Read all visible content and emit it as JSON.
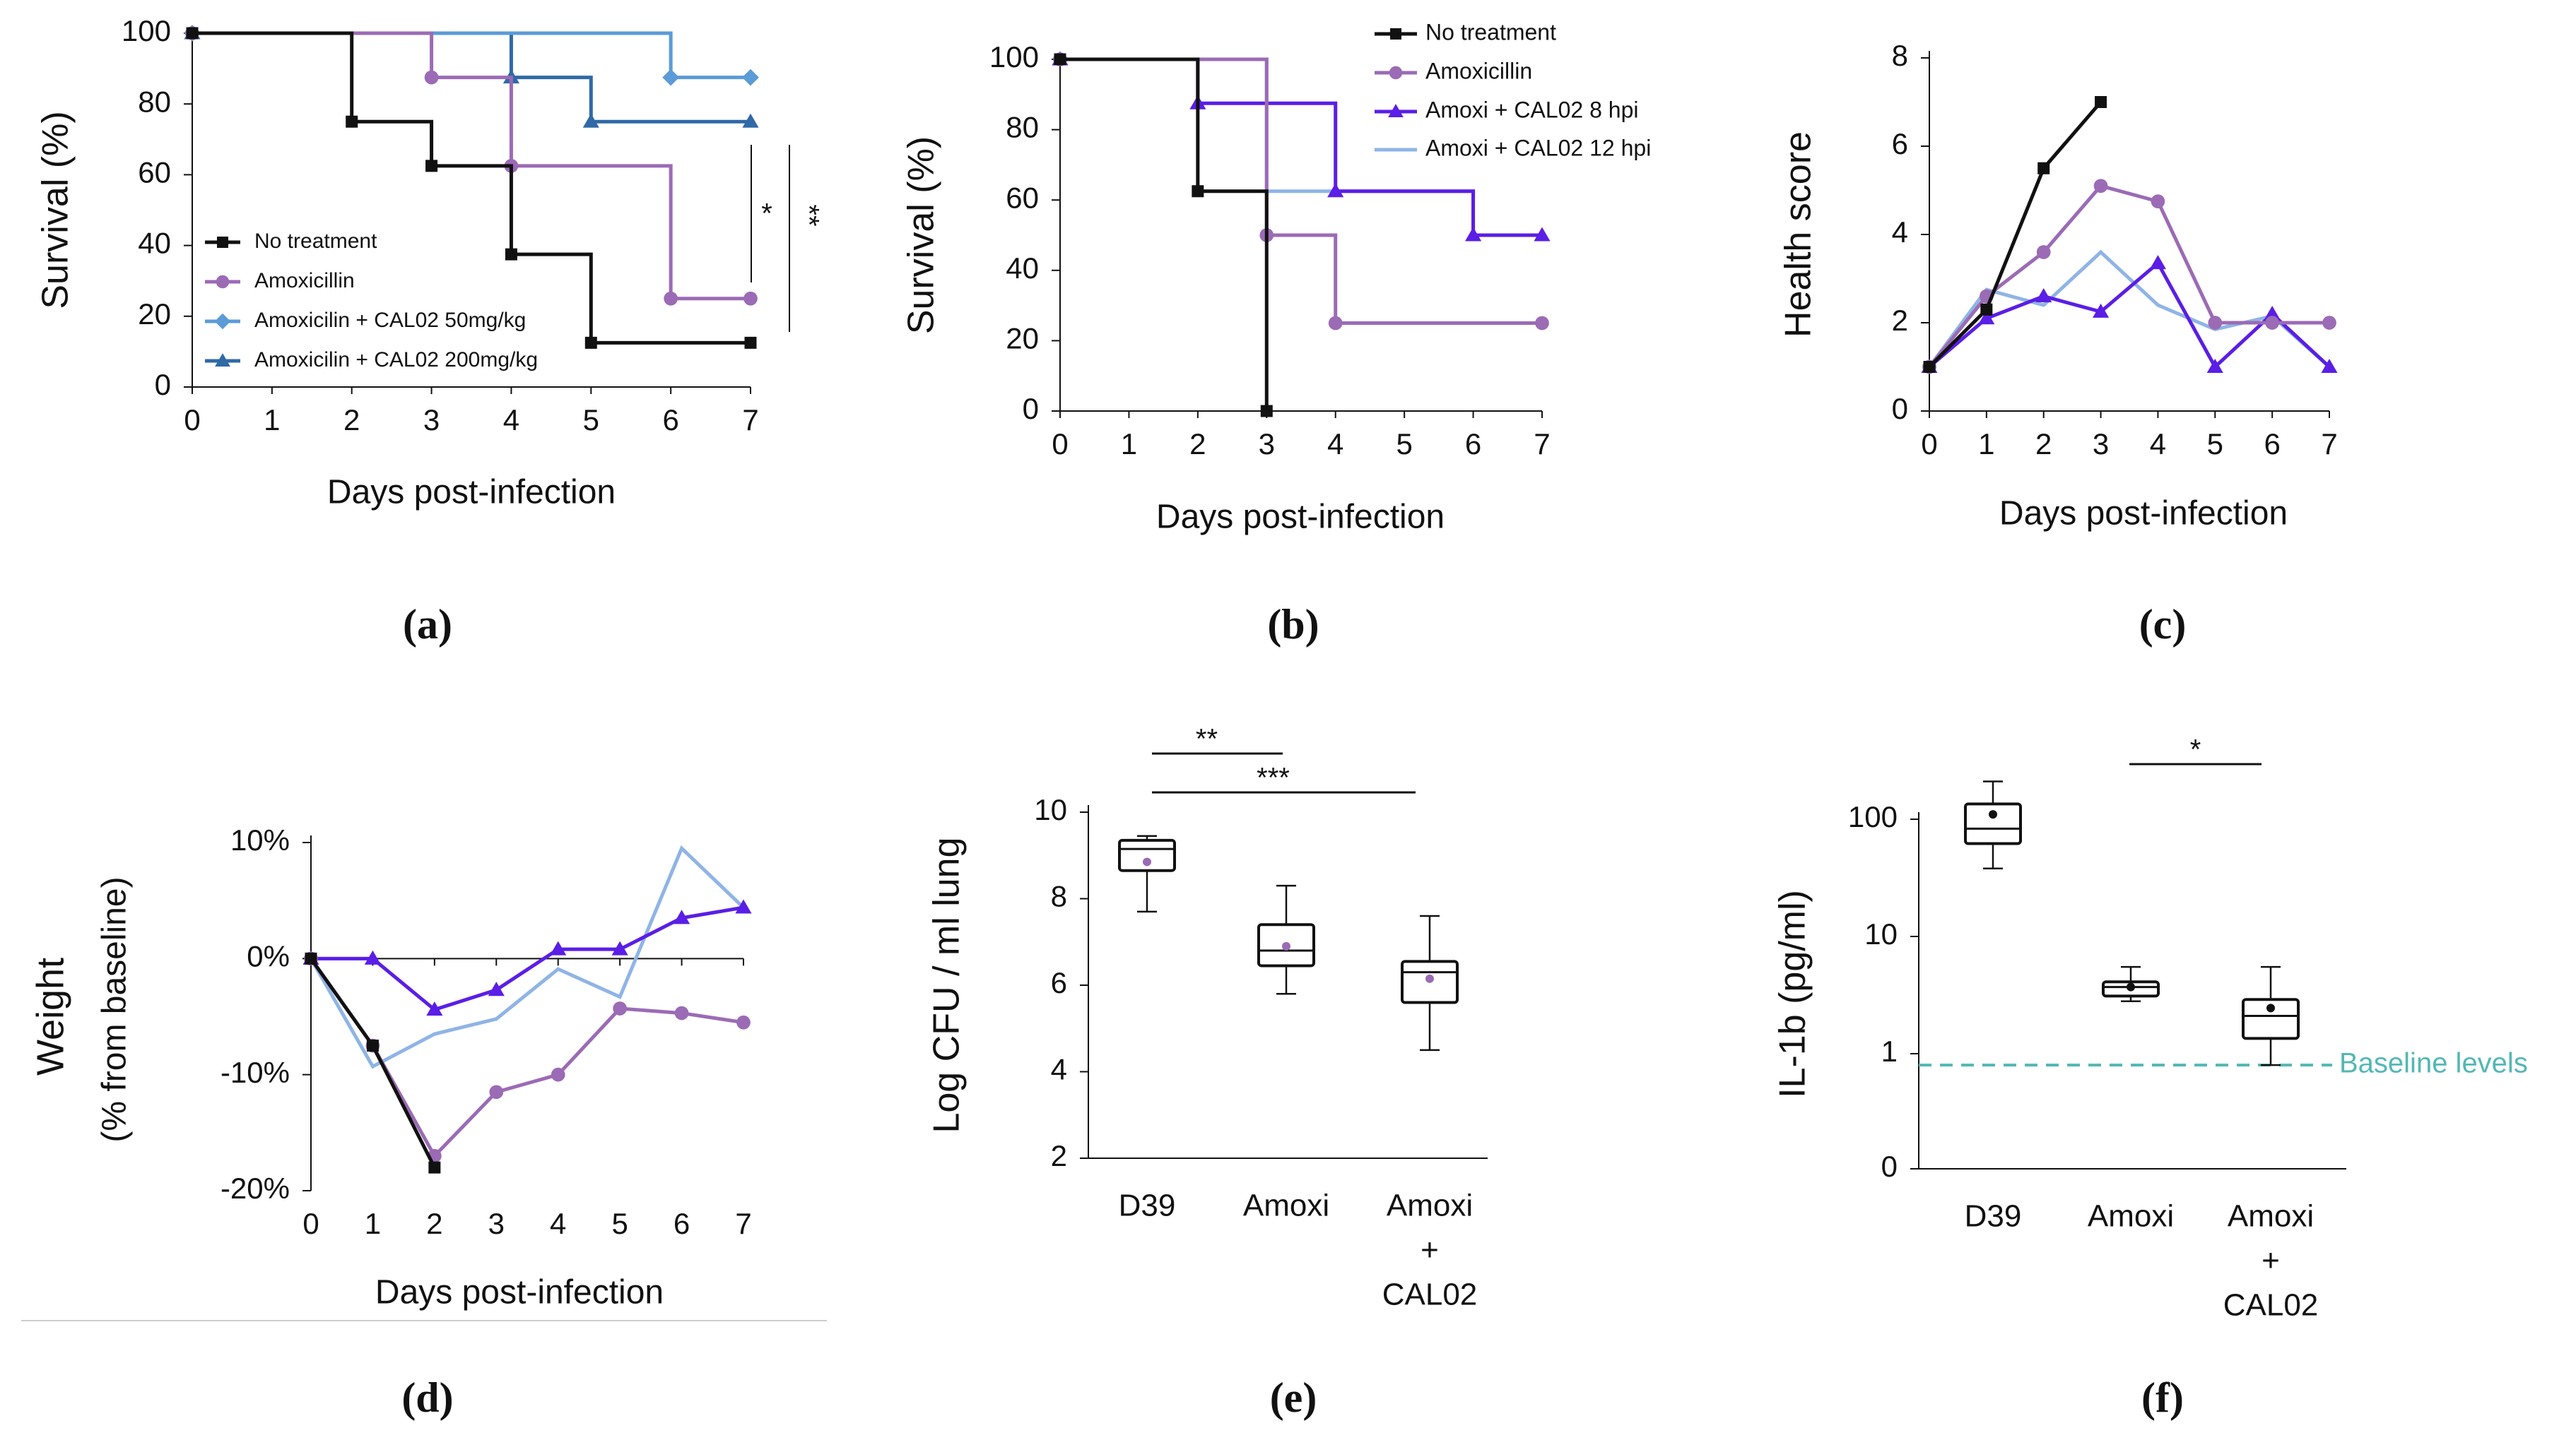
{
  "colors": {
    "black": "#111111",
    "purple": "#9b6bb5",
    "lightblue": "#8fb4e6",
    "midblue": "#5b9bd8",
    "darkblue": "#2f6aa6",
    "violet": "#5a1ee6",
    "teal": "#52b8b3"
  },
  "chart_data": [
    {
      "id": "a",
      "type": "line",
      "step": true,
      "caption": "(a)",
      "xlabel": "Days post-infection",
      "ylabel": "Survival (%)",
      "xlim": [
        0,
        7
      ],
      "ylim": [
        0,
        100
      ],
      "xticks": [
        "0",
        "1",
        "2",
        "3",
        "4",
        "5",
        "6",
        "7"
      ],
      "yticks": [
        "0",
        "20",
        "40",
        "60",
        "80",
        "100"
      ],
      "legend": "lower-left",
      "series": [
        {
          "name": "No treatment",
          "color": "black",
          "marker": "square",
          "x": [
            0,
            2,
            3,
            4,
            5,
            7
          ],
          "y": [
            100,
            75,
            62.5,
            37.5,
            12.5,
            12.5
          ]
        },
        {
          "name": "Amoxicillin",
          "color": "purple",
          "marker": "circle",
          "x": [
            0,
            3,
            4,
            6,
            7
          ],
          "y": [
            100,
            87.5,
            62.5,
            25,
            25
          ]
        },
        {
          "name": "Amoxicilin + CAL02  50mg/kg",
          "color": "midblue",
          "marker": "diamond",
          "x": [
            0,
            6,
            7
          ],
          "y": [
            100,
            87.5,
            87.5
          ]
        },
        {
          "name": "Amoxicilin + CAL02  200mg/kg",
          "color": "darkblue",
          "marker": "triangle",
          "x": [
            0,
            4,
            5,
            7
          ],
          "y": [
            100,
            87.5,
            75,
            75
          ]
        }
      ],
      "annotations": [
        {
          "text": "*"
        },
        {
          "text": "**"
        }
      ]
    },
    {
      "id": "b",
      "type": "line",
      "step": true,
      "caption": "(b)",
      "xlabel": "Days post-infection",
      "ylabel": "Survival (%)",
      "xlim": [
        0,
        7
      ],
      "ylim": [
        0,
        100
      ],
      "xticks": [
        "0",
        "1",
        "2",
        "3",
        "4",
        "5",
        "6",
        "7"
      ],
      "yticks": [
        "0",
        "20",
        "40",
        "60",
        "80",
        "100"
      ],
      "legend": "top-right",
      "series": [
        {
          "name": "No treatment",
          "color": "black",
          "marker": "square",
          "x": [
            0,
            2,
            3
          ],
          "y": [
            100,
            62.5,
            0
          ]
        },
        {
          "name": "Amoxicillin",
          "color": "purple",
          "marker": "circle",
          "x": [
            0,
            3,
            4,
            7
          ],
          "y": [
            100,
            50,
            25,
            25
          ]
        },
        {
          "name": "Amoxi + CAL02 8 hpi",
          "color": "violet",
          "marker": "triangle",
          "x": [
            0,
            2,
            4,
            6,
            7
          ],
          "y": [
            100,
            87.5,
            62.5,
            50,
            50
          ]
        },
        {
          "name": "Amoxi + CAL02 12 hpi",
          "color": "lightblue",
          "marker": "none",
          "x": [
            0,
            3,
            6
          ],
          "y": [
            100,
            62.5,
            50
          ]
        }
      ]
    },
    {
      "id": "c",
      "type": "line",
      "caption": "(c)",
      "xlabel": "Days post-infection",
      "ylabel": "Health score",
      "xlim": [
        0,
        7
      ],
      "ylim": [
        0,
        8
      ],
      "xticks": [
        "0",
        "1",
        "2",
        "3",
        "4",
        "5",
        "6",
        "7"
      ],
      "yticks": [
        "0",
        "2",
        "4",
        "6",
        "8"
      ],
      "series": [
        {
          "name": "No treatment",
          "color": "black",
          "marker": "square",
          "x": [
            0,
            1,
            2,
            3
          ],
          "y": [
            1,
            2.3,
            5.5,
            7
          ]
        },
        {
          "name": "Amoxicillin",
          "color": "purple",
          "marker": "circle",
          "x": [
            0,
            1,
            2,
            3,
            4,
            5,
            6,
            7
          ],
          "y": [
            1,
            2.6,
            3.6,
            5.1,
            4.75,
            2,
            2,
            2
          ]
        },
        {
          "name": "Amoxi + CAL02 8 hpi",
          "color": "violet",
          "marker": "triangle",
          "x": [
            0,
            1,
            2,
            3,
            4,
            5,
            6,
            7
          ],
          "y": [
            1,
            2.1,
            2.6,
            2.25,
            3.35,
            1,
            2.2,
            1
          ]
        },
        {
          "name": "Amoxi + CAL02 12 hpi",
          "color": "lightblue",
          "marker": "none",
          "x": [
            0,
            1,
            2,
            3,
            4,
            5,
            6,
            7
          ],
          "y": [
            1,
            2.75,
            2.4,
            3.6,
            2.4,
            1.85,
            2.15,
            1
          ]
        }
      ]
    },
    {
      "id": "d",
      "type": "line",
      "caption": "(d)",
      "xlabel": "Days post-infection",
      "ylabel": "Weight",
      "ylabel2": "(% from baseline)",
      "xlim": [
        0,
        7
      ],
      "ylim": [
        -20,
        10
      ],
      "xticks": [
        "0",
        "1",
        "2",
        "3",
        "4",
        "5",
        "6",
        "7"
      ],
      "yticks": [
        {
          "v": -20,
          "label": "-20%"
        },
        {
          "v": -10,
          "label": "-10%"
        },
        {
          "v": 0,
          "label": "0%"
        },
        {
          "v": 10,
          "label": "10%"
        }
      ],
      "series": [
        {
          "name": "No treatment",
          "color": "black",
          "marker": "square",
          "x": [
            0,
            1,
            2
          ],
          "y": [
            0,
            -7.5,
            -18
          ]
        },
        {
          "name": "Amoxicillin",
          "color": "purple",
          "marker": "circle",
          "x": [
            0,
            1,
            2,
            3,
            4,
            5,
            6,
            7
          ],
          "y": [
            0,
            -7.5,
            -17,
            -11.5,
            -10,
            -4.3,
            -4.7,
            -5.5
          ]
        },
        {
          "name": "Amoxi + CAL02 8 hpi",
          "color": "violet",
          "marker": "triangle",
          "x": [
            0,
            1,
            2,
            3,
            4,
            5,
            6,
            7
          ],
          "y": [
            0,
            0,
            -4.4,
            -2.7,
            0.8,
            0.8,
            3.5,
            4.4
          ]
        },
        {
          "name": "Amoxi + CAL02 12 hpi",
          "color": "lightblue",
          "marker": "none",
          "x": [
            0,
            1,
            2,
            3,
            4,
            5,
            6,
            7
          ],
          "y": [
            0,
            -9.3,
            -6.5,
            -5.2,
            -0.9,
            -3.3,
            9.5,
            4.4
          ]
        }
      ]
    },
    {
      "id": "e",
      "type": "box",
      "caption": "(e)",
      "ylabel": "Log CFU / ml lung",
      "ylim": [
        2,
        10
      ],
      "yticks": [
        "2",
        "4",
        "6",
        "8",
        "10"
      ],
      "categories": [
        [
          "D39"
        ],
        [
          "Amoxi"
        ],
        [
          "Amoxi",
          "+",
          "CAL02"
        ]
      ],
      "boxes": [
        {
          "min": 7.7,
          "q1": 8.65,
          "median": 9.15,
          "q3": 9.35,
          "max": 9.45,
          "mean": 8.85
        },
        {
          "min": 5.8,
          "q1": 6.45,
          "median": 6.8,
          "q3": 7.4,
          "max": 8.3,
          "mean": 6.9
        },
        {
          "min": 4.5,
          "q1": 5.6,
          "median": 6.3,
          "q3": 6.55,
          "max": 7.6,
          "mean": 6.15
        }
      ],
      "significance": [
        {
          "from": 0,
          "to": 1,
          "label": "**"
        },
        {
          "from": 0,
          "to": 2,
          "label": "***"
        }
      ]
    },
    {
      "id": "f",
      "type": "box",
      "scale": "log",
      "caption": "(f)",
      "ylabel": "IL-1b (pg/ml)",
      "yticks": [
        "0",
        "1",
        "10",
        "100"
      ],
      "categories": [
        [
          "D39"
        ],
        [
          "Amoxi"
        ],
        [
          "Amoxi",
          "+",
          "CAL02"
        ]
      ],
      "boxes": [
        {
          "min": 38,
          "q1": 62,
          "median": 83,
          "q3": 135,
          "max": 210,
          "mean": 110
        },
        {
          "min": 2.8,
          "q1": 3.1,
          "median": 3.7,
          "q3": 4.1,
          "max": 5.5,
          "mean": 3.7
        },
        {
          "min": 0.8,
          "q1": 1.35,
          "median": 2.1,
          "q3": 2.9,
          "max": 5.5,
          "mean": 2.45
        }
      ],
      "baseline": {
        "value": 0.8,
        "label": "Baseline levels"
      },
      "significance": [
        {
          "from": 1,
          "to": 2,
          "label": "*"
        }
      ]
    }
  ]
}
